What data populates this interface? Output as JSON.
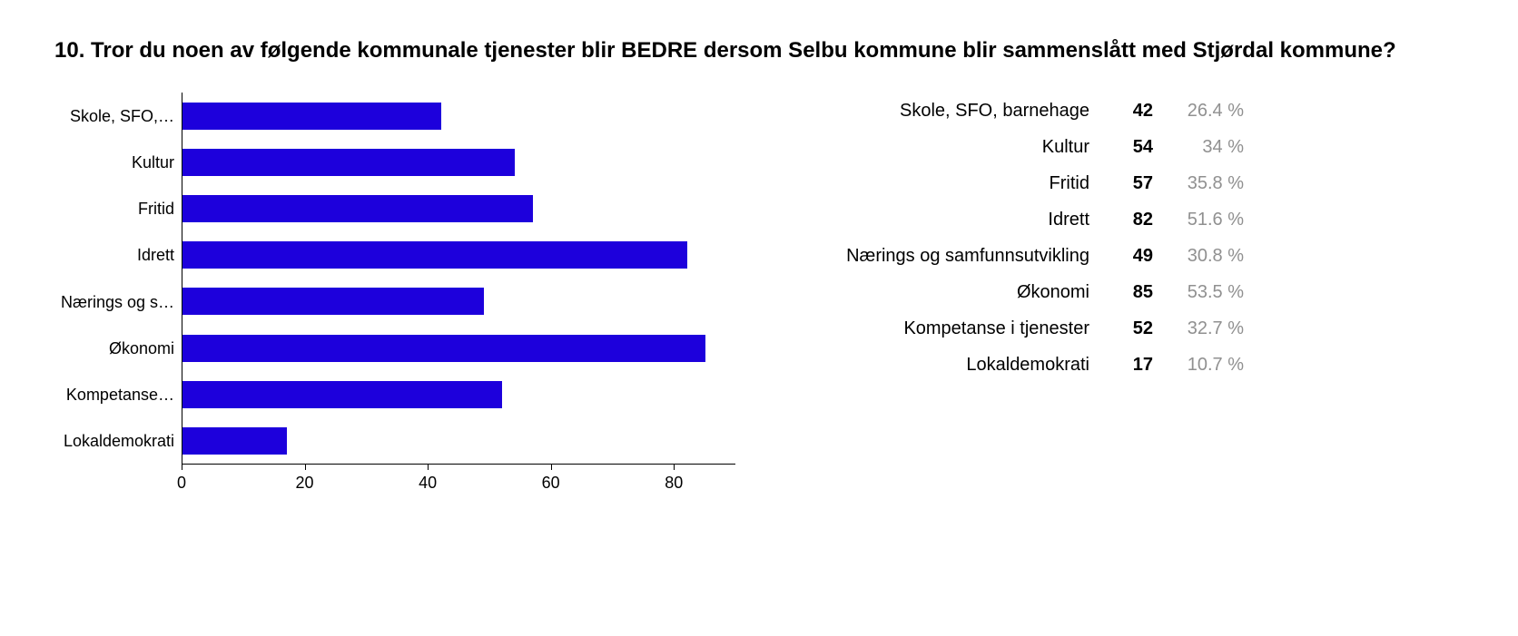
{
  "title": "10. Tror du noen av følgende kommunale tjenester blir BEDRE dersom Selbu kommune blir sammenslått med Stjørdal kommune?",
  "chart": {
    "type": "bar-horizontal",
    "bar_color": "#1d00dc",
    "background_color": "#ffffff",
    "axis_color": "#000000",
    "label_fontsize": 18,
    "xlim": [
      0,
      90
    ],
    "xtick_step": 20,
    "xticks": [
      0,
      20,
      40,
      60,
      80
    ],
    "categories_short": [
      "Skole, SFO,…",
      "Kultur",
      "Fritid",
      "Idrett",
      "Nærings og s…",
      "Økonomi",
      "Kompetanse…",
      "Lokaldemokrati"
    ],
    "values": [
      42,
      54,
      57,
      82,
      49,
      85,
      52,
      17
    ]
  },
  "table": {
    "label_color": "#000000",
    "count_color": "#000000",
    "pct_color": "#909090",
    "fontsize": 20,
    "rows": [
      {
        "label": "Skole, SFO, barnehage",
        "count": "42",
        "pct": "26.4 %"
      },
      {
        "label": "Kultur",
        "count": "54",
        "pct": "34 %"
      },
      {
        "label": "Fritid",
        "count": "57",
        "pct": "35.8 %"
      },
      {
        "label": "Idrett",
        "count": "82",
        "pct": "51.6 %"
      },
      {
        "label": "Nærings og samfunnsutvikling",
        "count": "49",
        "pct": "30.8 %"
      },
      {
        "label": "Økonomi",
        "count": "85",
        "pct": "53.5 %"
      },
      {
        "label": "Kompetanse i tjenester",
        "count": "52",
        "pct": "32.7 %"
      },
      {
        "label": "Lokaldemokrati",
        "count": "17",
        "pct": "10.7 %"
      }
    ]
  }
}
